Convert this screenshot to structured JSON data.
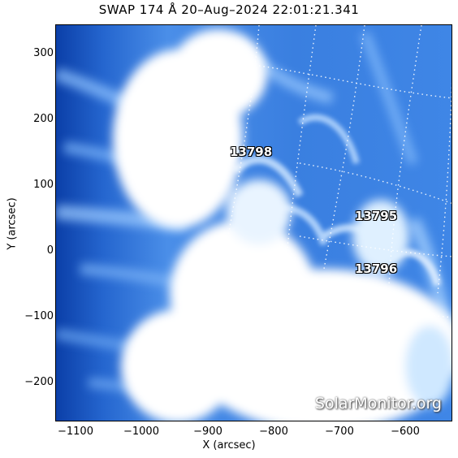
{
  "title": "SWAP 174 Å 20–Aug–2024 22:01:21.341",
  "axes": {
    "xlabel": "X (arcsec)",
    "ylabel": "Y (arcsec)",
    "xticks": [
      "−1100",
      "−1000",
      "−900",
      "−800",
      "−700",
      "−600"
    ],
    "yticks": [
      "300",
      "200",
      "100",
      "0",
      "−100",
      "−200"
    ]
  },
  "regions": [
    {
      "label": "13798"
    },
    {
      "label": "13795"
    },
    {
      "label": "13796"
    }
  ],
  "watermark": "SolarMonitor.org",
  "colors": {
    "deep_blue": "#0b3fa8",
    "mid_blue": "#3f86e6",
    "light_blue": "#a8d2ff",
    "saturated": "#ffffff"
  }
}
